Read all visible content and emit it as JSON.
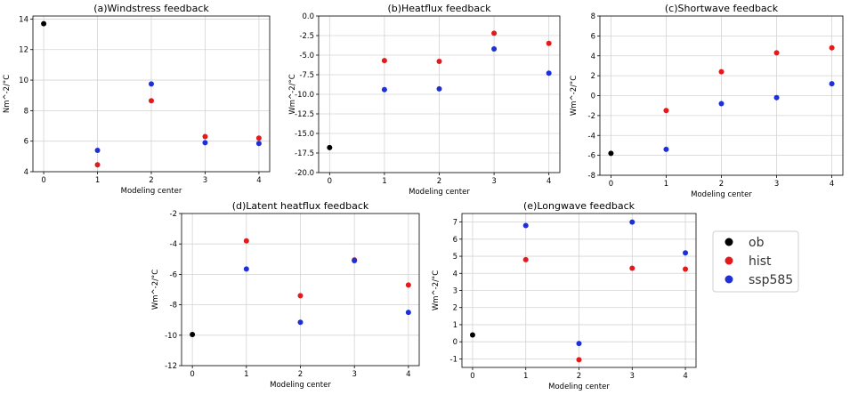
{
  "chart_data": [
    {
      "type": "scatter",
      "title": "(a)Windstress feedback",
      "xlabel": "Modeling center",
      "ylabel": "Nm^-2/°C",
      "xlim": [
        -0.2,
        4.2
      ],
      "ylim": [
        4,
        14.2
      ],
      "xticks": [
        0,
        1,
        2,
        3,
        4
      ],
      "yticks": [
        4,
        6,
        8,
        10,
        12,
        14
      ],
      "series": [
        {
          "name": "ob",
          "color": "#000000",
          "x": [
            0
          ],
          "y": [
            13.7
          ]
        },
        {
          "name": "hist",
          "color": "#e31a1c",
          "x": [
            1,
            2,
            3,
            4
          ],
          "y": [
            4.45,
            8.65,
            6.3,
            6.2
          ]
        },
        {
          "name": "ssp585",
          "color": "#1f2fd6",
          "x": [
            1,
            2,
            3,
            4
          ],
          "y": [
            5.4,
            9.75,
            5.9,
            5.85
          ]
        }
      ]
    },
    {
      "type": "scatter",
      "title": "(b)Heatflux feedback",
      "xlabel": "Modeling center",
      "ylabel": "Wm^-2/°C",
      "xlim": [
        -0.2,
        4.2
      ],
      "ylim": [
        -20,
        0
      ],
      "xticks": [
        0,
        1,
        2,
        3,
        4
      ],
      "yticks": [
        0.0,
        -2.5,
        -5.0,
        -7.5,
        -10.0,
        -12.5,
        -15.0,
        -17.5,
        -20.0
      ],
      "series": [
        {
          "name": "ob",
          "color": "#000000",
          "x": [
            0
          ],
          "y": [
            -16.8
          ]
        },
        {
          "name": "hist",
          "color": "#e31a1c",
          "x": [
            1,
            2,
            3,
            4
          ],
          "y": [
            -5.7,
            -5.8,
            -2.2,
            -3.5
          ]
        },
        {
          "name": "ssp585",
          "color": "#1f2fd6",
          "x": [
            1,
            2,
            3,
            4
          ],
          "y": [
            -9.4,
            -9.3,
            -4.2,
            -7.3
          ]
        }
      ]
    },
    {
      "type": "scatter",
      "title": "(c)Shortwave feedback",
      "xlabel": "Modeling center",
      "ylabel": "Wm^-2/°C",
      "xlim": [
        -0.2,
        4.2
      ],
      "ylim": [
        -8,
        8
      ],
      "xticks": [
        0,
        1,
        2,
        3,
        4
      ],
      "yticks": [
        -8,
        -6,
        -4,
        -2,
        0,
        2,
        4,
        6,
        8
      ],
      "series": [
        {
          "name": "ob",
          "color": "#000000",
          "x": [
            0
          ],
          "y": [
            -5.8
          ]
        },
        {
          "name": "hist",
          "color": "#e31a1c",
          "x": [
            1,
            2,
            3,
            4
          ],
          "y": [
            -1.5,
            2.4,
            4.3,
            4.8
          ]
        },
        {
          "name": "ssp585",
          "color": "#1f2fd6",
          "x": [
            1,
            2,
            3,
            4
          ],
          "y": [
            -5.4,
            -0.8,
            -0.2,
            1.2
          ]
        }
      ]
    },
    {
      "type": "scatter",
      "title": "(d)Latent heatflux feedback",
      "xlabel": "Modeling center",
      "ylabel": "Wm^-2/°C",
      "xlim": [
        -0.2,
        4.2
      ],
      "ylim": [
        -12,
        -2
      ],
      "xticks": [
        0,
        1,
        2,
        3,
        4
      ],
      "yticks": [
        -2,
        -4,
        -6,
        -8,
        -10,
        -12
      ],
      "series": [
        {
          "name": "ob",
          "color": "#000000",
          "x": [
            0
          ],
          "y": [
            -9.95
          ]
        },
        {
          "name": "hist",
          "color": "#e31a1c",
          "x": [
            1,
            2,
            3,
            4
          ],
          "y": [
            -3.8,
            -7.4,
            -5.05,
            -6.7
          ]
        },
        {
          "name": "ssp585",
          "color": "#1f2fd6",
          "x": [
            1,
            2,
            3,
            4
          ],
          "y": [
            -5.65,
            -9.15,
            -5.1,
            -8.5
          ]
        }
      ]
    },
    {
      "type": "scatter",
      "title": "(e)Longwave feedback",
      "xlabel": "Modeling center",
      "ylabel": "Wm^-2/°C",
      "xlim": [
        -0.2,
        4.2
      ],
      "ylim": [
        -1.5,
        7.5
      ],
      "xticks": [
        0,
        1,
        2,
        3,
        4
      ],
      "yticks": [
        -1,
        0,
        1,
        2,
        3,
        4,
        5,
        6,
        7
      ],
      "series": [
        {
          "name": "ob",
          "color": "#000000",
          "x": [
            0
          ],
          "y": [
            0.4
          ]
        },
        {
          "name": "hist",
          "color": "#e31a1c",
          "x": [
            1,
            2,
            3,
            4
          ],
          "y": [
            4.8,
            -1.05,
            4.3,
            4.25
          ]
        },
        {
          "name": "ssp585",
          "color": "#1f2fd6",
          "x": [
            1,
            2,
            3,
            4
          ],
          "y": [
            6.8,
            -0.1,
            7.0,
            5.2
          ]
        }
      ]
    }
  ],
  "legend": {
    "placement": "right",
    "entries": [
      {
        "label": "ob",
        "color": "#000000"
      },
      {
        "label": "hist",
        "color": "#e31a1c"
      },
      {
        "label": "ssp585",
        "color": "#1f2fd6"
      }
    ]
  }
}
